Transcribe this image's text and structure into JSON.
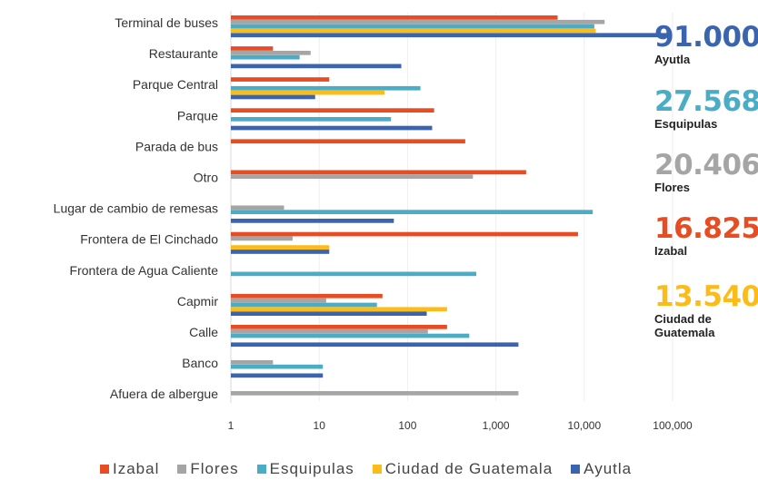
{
  "chart_data": {
    "type": "bar",
    "orientation": "horizontal",
    "x_scale": "log",
    "xlim": [
      1,
      100000
    ],
    "x_ticks": [
      "1",
      "10",
      "100",
      "1,000",
      "10,000",
      "100,000"
    ],
    "categories": [
      "Terminal de buses",
      "Restaurante",
      "Parque Central",
      "Parque",
      "Parada de bus",
      "Otro",
      "Lugar de cambio de remesas",
      "Frontera de El Cinchado",
      "Frontera de Agua Caliente",
      "Capmir",
      "Calle",
      "Banco",
      "Afuera de albergue"
    ],
    "series": [
      {
        "name": "Izabal",
        "color": "#e84c22",
        "values": [
          5000,
          3,
          13,
          200,
          450,
          2200,
          null,
          8500,
          null,
          52,
          280,
          null,
          null
        ]
      },
      {
        "name": "Flores",
        "color": "#a5a5a5",
        "values": [
          17000,
          8,
          null,
          null,
          null,
          550,
          4,
          5,
          null,
          12,
          170,
          3,
          1800
        ]
      },
      {
        "name": "Esquipulas",
        "color": "#4bacc6",
        "values": [
          13000,
          6,
          140,
          65,
          null,
          null,
          12500,
          null,
          600,
          45,
          500,
          11,
          null
        ]
      },
      {
        "name": "Ciudad de Guatemala",
        "color": "#fbbc1a",
        "values": [
          13500,
          null,
          55,
          null,
          null,
          null,
          null,
          13,
          null,
          280,
          null,
          null,
          null
        ]
      },
      {
        "name": "Ayutla",
        "color": "#3a64ad",
        "values": [
          91000,
          85,
          9,
          190,
          null,
          null,
          70,
          13,
          null,
          165,
          1800,
          11,
          null
        ]
      }
    ],
    "legend_position": "bottom",
    "grid": false
  },
  "callouts": [
    {
      "value": "91.000",
      "name_lines": [
        "Ayutla"
      ],
      "color": "#3a64ad"
    },
    {
      "value": "27.568",
      "name_lines": [
        "Esquipulas"
      ],
      "color": "#4bacc6"
    },
    {
      "value": "20.406",
      "name_lines": [
        "Flores"
      ],
      "color": "#a5a5a5"
    },
    {
      "value": "16.825",
      "name_lines": [
        "Izabal"
      ],
      "color": "#e84c22"
    },
    {
      "value": "13.540",
      "name_lines": [
        "Ciudad de",
        "Guatemala"
      ],
      "color": "#fbbc1a"
    }
  ]
}
